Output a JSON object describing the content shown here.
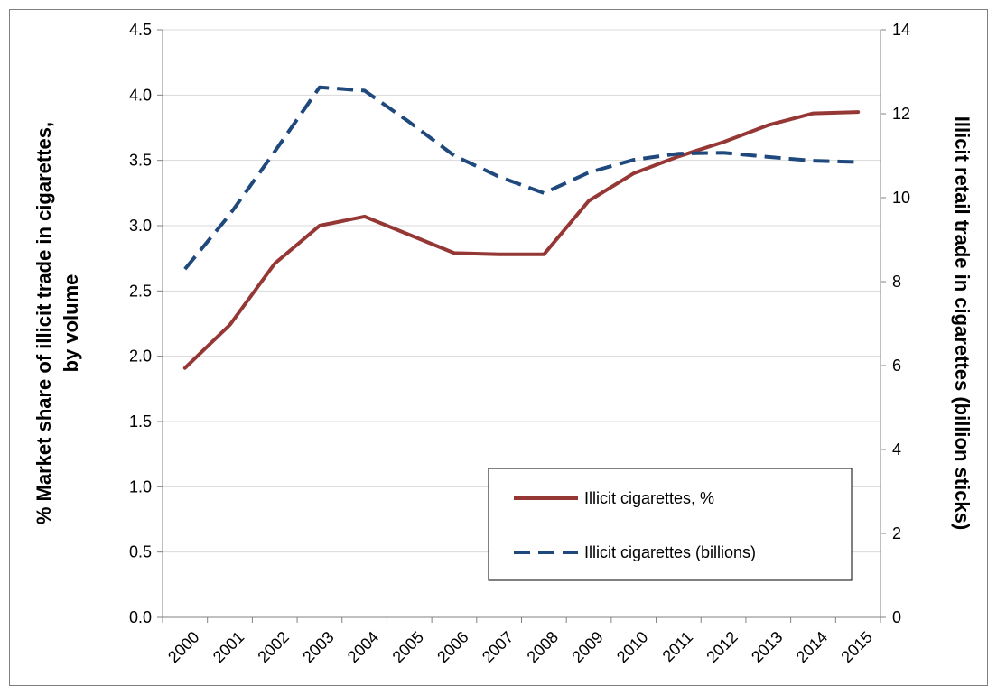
{
  "chart_data": {
    "type": "line",
    "x": [
      "2000",
      "2001",
      "2002",
      "2003",
      "2004",
      "2005",
      "2006",
      "2007",
      "2008",
      "2009",
      "2010",
      "2011",
      "2012",
      "2013",
      "2014",
      "2015"
    ],
    "series": [
      {
        "name": "Illicit cigarettes, %",
        "axis": "left",
        "style": "solid",
        "color": "#953735",
        "values": [
          1.91,
          2.24,
          2.71,
          3.0,
          3.07,
          2.93,
          2.79,
          2.78,
          2.78,
          3.19,
          3.4,
          3.53,
          3.64,
          3.77,
          3.86,
          3.87
        ]
      },
      {
        "name": "Illicit cigarettes (billions)",
        "axis": "right",
        "style": "dashed",
        "color": "#1f497d",
        "values": [
          8.3,
          9.6,
          11.1,
          12.63,
          12.55,
          11.8,
          11.0,
          10.5,
          10.11,
          10.6,
          10.9,
          11.05,
          11.07,
          10.97,
          10.88,
          10.85
        ]
      }
    ],
    "ylabel": "% Market share of illicit trade in cigarettes, by volume",
    "ylabel_lines": [
      "% Market share of illicit trade in cigarettes,",
      "by volume"
    ],
    "y2label": "Illicit retail trade in cigarettes (billion sticks)",
    "ylim": [
      0,
      4.5
    ],
    "yticks": [
      "0.0",
      "0.5",
      "1.0",
      "1.5",
      "2.0",
      "2.5",
      "3.0",
      "3.5",
      "4.0",
      "4.5"
    ],
    "y2lim": [
      0,
      14
    ],
    "y2ticks": [
      "0",
      "2",
      "4",
      "6",
      "8",
      "10",
      "12",
      "14"
    ],
    "grid": true,
    "legend_position": "bottom-right"
  }
}
